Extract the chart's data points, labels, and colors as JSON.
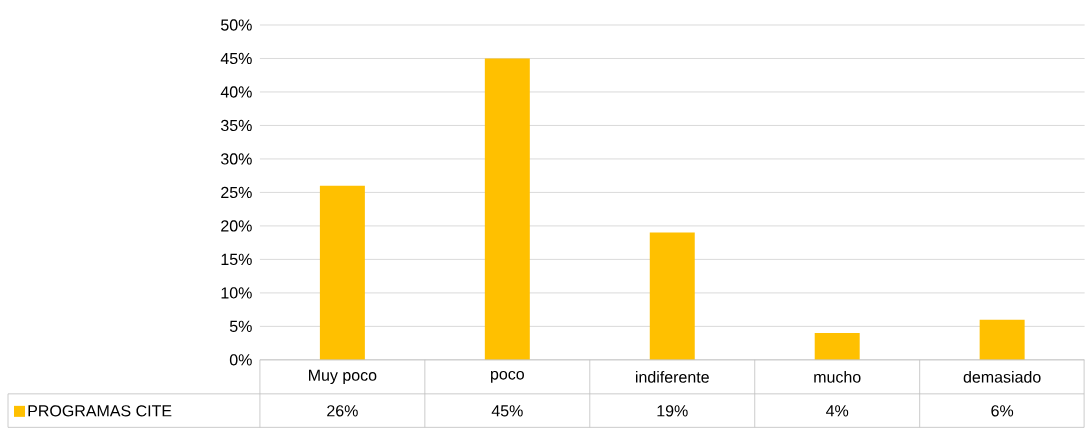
{
  "chart_data": {
    "type": "bar",
    "categories": [
      "Muy poco",
      "poco",
      "indiferente",
      "mucho",
      "demasiado"
    ],
    "series": [
      {
        "name": "PROGRAMAS CITE",
        "color": "#ffc000",
        "values": [
          26,
          45,
          19,
          4,
          6
        ],
        "value_labels": [
          "26%",
          "45%",
          "19%",
          "4%",
          "6%"
        ]
      }
    ],
    "ylim": [
      0,
      50
    ],
    "yticks": [
      {
        "value": 0,
        "label": "0%"
      },
      {
        "value": 5,
        "label": "5%"
      },
      {
        "value": 10,
        "label": "10%"
      },
      {
        "value": 15,
        "label": "15%"
      },
      {
        "value": 20,
        "label": "20%"
      },
      {
        "value": 25,
        "label": "25%"
      },
      {
        "value": 30,
        "label": "30%"
      },
      {
        "value": 35,
        "label": "35%"
      },
      {
        "value": 40,
        "label": "40%"
      },
      {
        "value": 45,
        "label": "45%"
      },
      {
        "value": 50,
        "label": "50%"
      }
    ],
    "grid": true,
    "legend": "bottom left"
  }
}
